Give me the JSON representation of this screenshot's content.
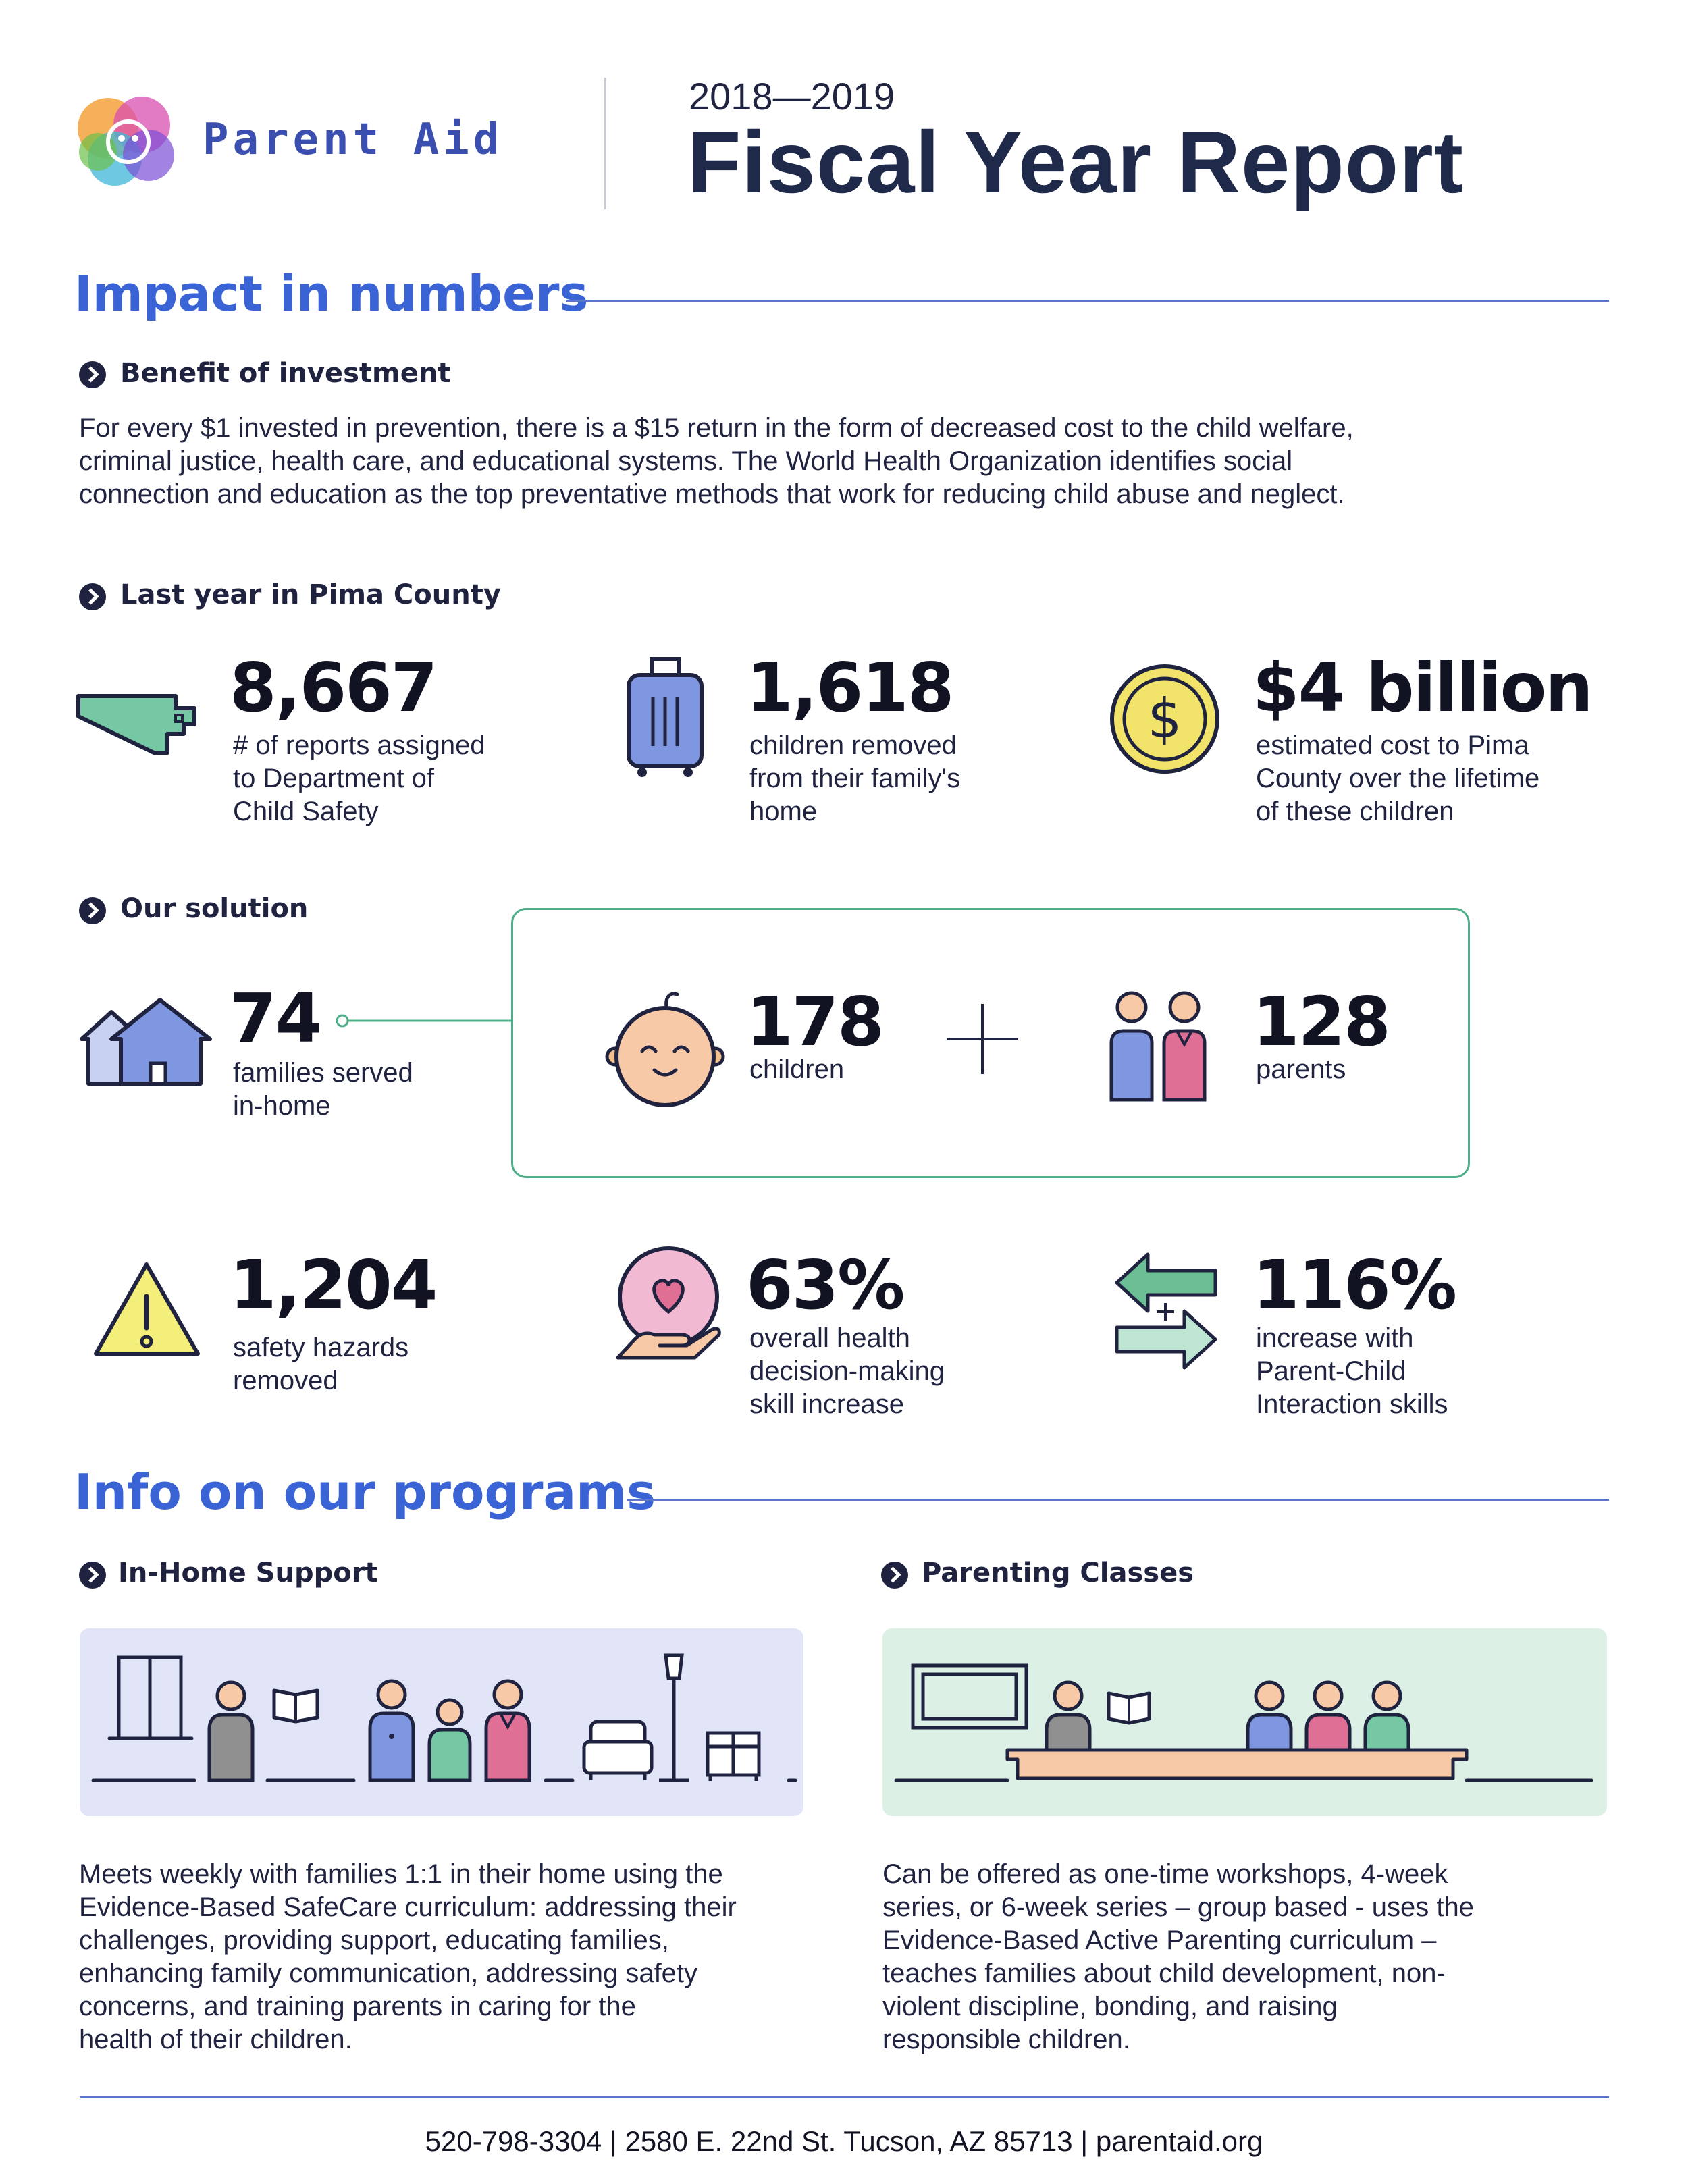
{
  "header": {
    "logo_text": "Parent Aid",
    "report_year": "2018—2019",
    "report_title": "Fiscal Year Report"
  },
  "impact": {
    "title": "Impact in numbers",
    "benefit": {
      "subtitle": "Benefit of investment",
      "lines": [
        "For every $1 invested in prevention, there is a $15 return in the form of decreased cost to the child welfare,",
        "criminal justice, health care, and educational systems. The World Health Organization identifies social",
        "connection and education as the top preventative methods that work for reducing child abuse and neglect."
      ]
    },
    "last_year": {
      "subtitle": "Last year in Pima County",
      "stats": [
        {
          "value": "8,667",
          "label": [
            "# of reports assigned",
            "to Department of",
            "Child Safety"
          ],
          "icon": "pima-county-map-icon"
        },
        {
          "value": "1,618",
          "label": [
            "children removed",
            "from their family's",
            "home"
          ],
          "icon": "suitcase-icon"
        },
        {
          "value": "$4 billion",
          "label": [
            "estimated cost to Pima",
            "County over the lifetime",
            "of these children"
          ],
          "icon": "dollar-coin-icon"
        }
      ]
    },
    "solution": {
      "subtitle": "Our solution",
      "families": {
        "value": "74",
        "label": [
          "families served",
          "in-home"
        ],
        "icon": "houses-icon"
      },
      "children": {
        "value": "178",
        "label": "children",
        "icon": "baby-face-icon"
      },
      "plus": "+",
      "parents": {
        "value": "128",
        "label": "parents",
        "icon": "parents-icon"
      }
    },
    "outcomes": [
      {
        "value": "1,204",
        "label": [
          "safety hazards",
          "removed"
        ],
        "icon": "warning-icon"
      },
      {
        "value": "63%",
        "label": [
          "overall health",
          "decision-making",
          "skill increase"
        ],
        "icon": "heart-hand-icon"
      },
      {
        "value": "116%",
        "label": [
          "increase with",
          "Parent-Child",
          "Interaction skills"
        ],
        "icon": "exchange-arrows-icon"
      }
    ]
  },
  "programs": {
    "title": "Info on our programs",
    "in_home": {
      "subtitle": "In-Home Support",
      "lines": [
        "Meets weekly with families 1:1 in their home using the",
        "Evidence-Based SafeCare curriculum: addressing their",
        "challenges, providing support, educating families,",
        "enhancing family communication, addressing safety",
        "concerns, and training parents in caring for the",
        "health of their children."
      ]
    },
    "classes": {
      "subtitle": "Parenting Classes",
      "lines": [
        "Can be offered as one-time workshops, 4-week",
        "series, or 6-week series – group based -  uses the",
        "Evidence-Based Active Parenting curriculum –",
        "teaches families about child development, non-",
        "violent discipline, bonding, and raising",
        "responsible children."
      ]
    }
  },
  "footer": {
    "text": "520-798-3304 | 2580 E. 22nd St. Tucson, AZ 85713 | parentaid.org"
  },
  "colors": {
    "accent_blue": "#3a63d6",
    "navy": "#1f2340",
    "green": "#4caf88",
    "in_home_panel": "#e1e5f7",
    "classes_panel": "#ddf0e6"
  }
}
